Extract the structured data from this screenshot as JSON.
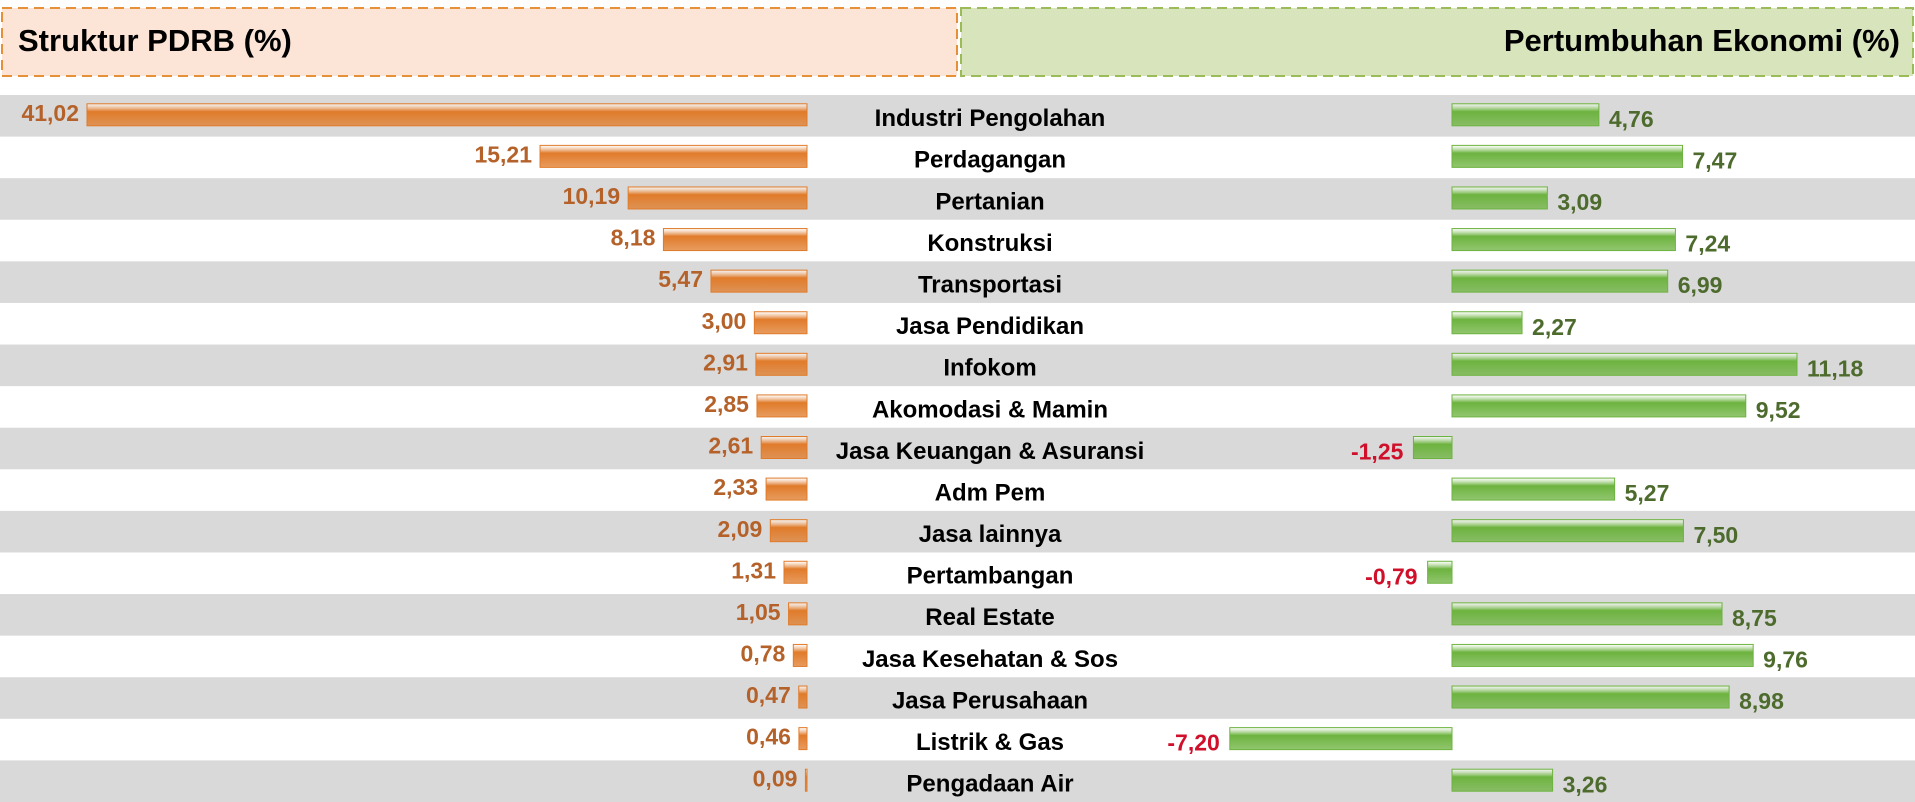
{
  "chart_data": {
    "type": "butterfly-bar",
    "categories": [
      "Industri Pengolahan",
      "Perdagangan",
      "Pertanian",
      "Konstruksi",
      "Transportasi",
      "Jasa Pendidikan",
      "Infokom",
      "Akomodasi & Mamin",
      "Jasa Keuangan & Asuransi",
      "Adm Pem",
      "Jasa lainnya",
      "Pertambangan",
      "Real Estate",
      "Jasa Kesehatan & Sos",
      "Jasa Perusahaan",
      "Listrik & Gas",
      "Pengadaan Air"
    ],
    "series": [
      {
        "name": "Struktur PDRB (%)",
        "color": "#e07b2a",
        "label_color": "#b5622a",
        "values": [
          41.02,
          15.21,
          10.19,
          8.18,
          5.47,
          3.0,
          2.91,
          2.85,
          2.61,
          2.33,
          2.09,
          1.31,
          1.05,
          0.78,
          0.47,
          0.46,
          0.09
        ],
        "value_labels": [
          "41,02",
          "15,21",
          "10,19",
          "8,18",
          "5,47",
          "3,00",
          "2,91",
          "2,85",
          "2,61",
          "2,33",
          "2,09",
          "1,31",
          "1,05",
          "0,78",
          "0,47",
          "0,46",
          "0,09"
        ]
      },
      {
        "name": "Pertumbuhan Ekonomi (%)",
        "color": "#6db33f",
        "label_color": "#4e6b2e",
        "negative_label_color": "#d0102a",
        "values": [
          4.76,
          7.47,
          3.09,
          7.24,
          6.99,
          2.27,
          11.18,
          9.52,
          -1.25,
          5.27,
          7.5,
          -0.79,
          8.75,
          9.76,
          8.98,
          -7.2,
          3.26
        ],
        "value_labels": [
          "4,76",
          "7,47",
          "3,09",
          "7,24",
          "6,99",
          "2,27",
          "11,18",
          "9,52",
          "-1,25",
          "5,27",
          "7,50",
          "-0,79",
          "8,75",
          "9,76",
          "8,98",
          "-7,20",
          "3,26"
        ]
      }
    ]
  }
}
